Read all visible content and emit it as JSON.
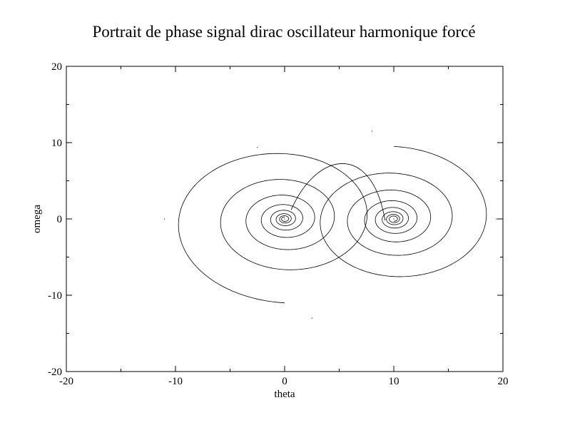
{
  "chart_data": {
    "type": "line",
    "title": "Portrait de phase signal dirac oscillateur harmonique forcé",
    "xlabel": "theta",
    "ylabel": "omega",
    "xlim": [
      -20,
      20
    ],
    "ylim": [
      -20,
      20
    ],
    "x_ticks": [
      -20,
      -10,
      0,
      10,
      20
    ],
    "y_ticks": [
      -20,
      -10,
      0,
      10,
      20
    ],
    "x_tick_labels": [
      "-20",
      "-10",
      "0",
      "10",
      "20"
    ],
    "y_tick_labels": [
      "-20",
      "-10",
      "0",
      "10",
      "20"
    ],
    "grid": false,
    "line_color": "#000000",
    "series": [
      {
        "centers": [
          [
            0,
            0
          ],
          [
            10,
            0
          ]
        ],
        "spiral_segments": [
          {
            "center_x": 0,
            "center_y": 0,
            "start_radius": 11,
            "end_radius": 0.25,
            "turns": 7.5,
            "start_angle_deg": -90
          },
          {
            "center_x": 10,
            "center_y": 0,
            "start_radius": 9.5,
            "end_radius": 0.3,
            "turns": 7.5,
            "start_angle_deg": 90
          }
        ],
        "notable_points": [
          {
            "theta": 2.5,
            "omega": -13
          },
          {
            "theta": -11,
            "omega": 0
          },
          {
            "theta": -2.5,
            "omega": 9.4
          },
          {
            "theta": 8,
            "omega": 11.5
          },
          {
            "theta": 19.4,
            "omega": 0
          },
          {
            "theta": 10,
            "omega": 0
          },
          {
            "theta": 0,
            "omega": 0
          }
        ]
      }
    ]
  }
}
